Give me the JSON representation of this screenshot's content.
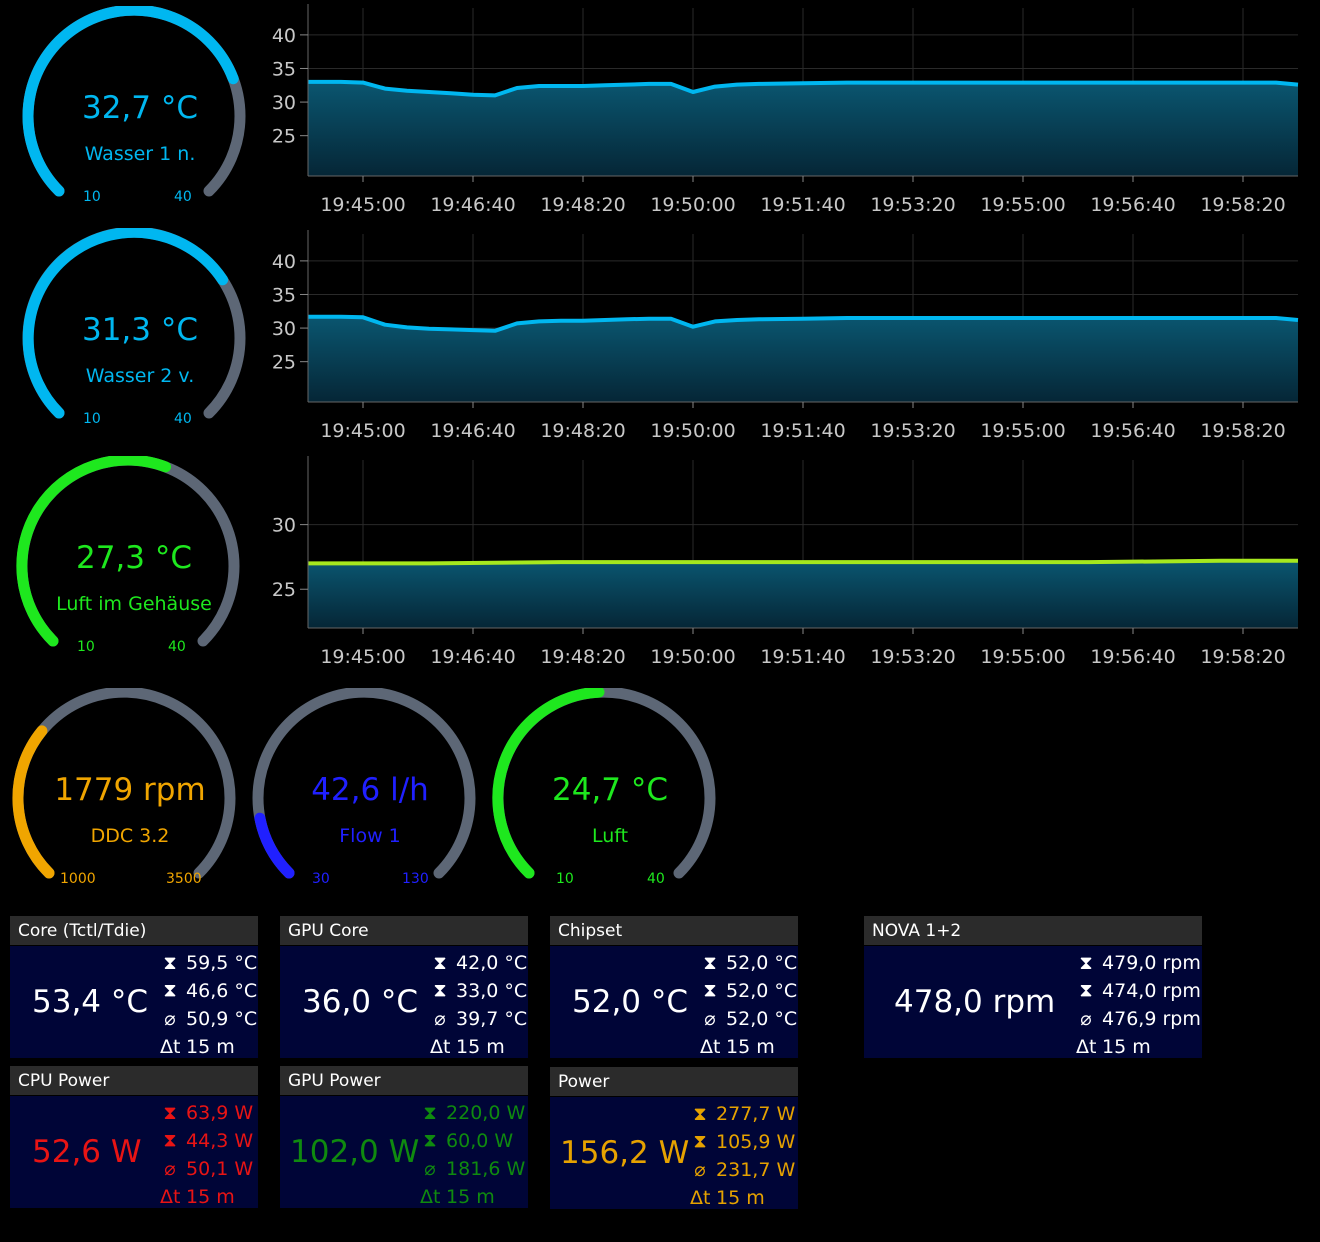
{
  "gauges": [
    {
      "value": "32,7 °C",
      "label": "Wasser 1 n.",
      "min": "10",
      "max": "40",
      "fraction": 0.757,
      "color": "#00b7f0"
    },
    {
      "value": "31,3 °C",
      "label": "Wasser 2 v.",
      "min": "10",
      "max": "40",
      "fraction": 0.71,
      "color": "#00b7f0"
    },
    {
      "value": "27,3 °C",
      "label": "Luft im Gehäuse",
      "min": "10",
      "max": "40",
      "fraction": 0.577,
      "color": "#1ee81e"
    },
    {
      "value": "1779 rpm",
      "label": "DDC 3.2",
      "min": "1000",
      "max": "3500",
      "fraction": 0.312,
      "color": "#f0a500"
    },
    {
      "value": "42,6 l/h",
      "label": "Flow 1",
      "min": "30",
      "max": "130",
      "fraction": 0.126,
      "color": "#2020ff"
    },
    {
      "value": "24,7 °C",
      "label": "Luft",
      "min": "10",
      "max": "40",
      "fraction": 0.49,
      "color": "#1ee81e"
    }
  ],
  "chart_data": [
    {
      "type": "area",
      "x": [
        "19:44:10",
        "19:44:40",
        "19:45:00",
        "19:45:20",
        "19:45:40",
        "19:46:00",
        "19:46:20",
        "19:46:40",
        "19:47:00",
        "19:47:20",
        "19:47:40",
        "19:48:00",
        "19:48:20",
        "19:48:40",
        "19:49:00",
        "19:49:20",
        "19:49:40",
        "19:50:00",
        "19:50:20",
        "19:50:40",
        "19:51:00",
        "19:51:40",
        "19:52:20",
        "19:53:20",
        "19:54:20",
        "19:55:20",
        "19:56:20",
        "19:57:20",
        "19:58:20",
        "19:58:50",
        "19:59:10"
      ],
      "series": [
        {
          "values": [
            33.0,
            33.0,
            32.9,
            32.0,
            31.7,
            31.5,
            31.3,
            31.1,
            31.0,
            32.1,
            32.4,
            32.4,
            32.4,
            32.5,
            32.6,
            32.7,
            32.7,
            31.5,
            32.3,
            32.6,
            32.7,
            32.8,
            32.9,
            32.9,
            32.9,
            32.9,
            32.9,
            32.9,
            32.9,
            32.9,
            32.6
          ]
        }
      ],
      "yticks": [
        "25",
        "30",
        "35",
        "40"
      ],
      "ylim": [
        19,
        44
      ],
      "xticks": [
        "19:45:00",
        "19:46:40",
        "19:48:20",
        "19:50:00",
        "19:51:40",
        "19:53:20",
        "19:55:00",
        "19:56:40",
        "19:58:20"
      ],
      "grid": true,
      "line_color": "#00b7f0"
    },
    {
      "type": "area",
      "x": [
        "19:44:10",
        "19:44:40",
        "19:45:00",
        "19:45:20",
        "19:45:40",
        "19:46:00",
        "19:46:20",
        "19:46:40",
        "19:47:00",
        "19:47:20",
        "19:47:40",
        "19:48:00",
        "19:48:20",
        "19:48:40",
        "19:49:00",
        "19:49:20",
        "19:49:40",
        "19:50:00",
        "19:50:20",
        "19:50:40",
        "19:51:00",
        "19:51:40",
        "19:52:20",
        "19:53:20",
        "19:54:20",
        "19:55:20",
        "19:56:20",
        "19:57:20",
        "19:58:20",
        "19:58:50",
        "19:59:10"
      ],
      "series": [
        {
          "values": [
            31.7,
            31.7,
            31.6,
            30.5,
            30.1,
            29.9,
            29.8,
            29.7,
            29.6,
            30.7,
            31.0,
            31.1,
            31.1,
            31.2,
            31.3,
            31.4,
            31.4,
            30.2,
            31.0,
            31.2,
            31.3,
            31.4,
            31.5,
            31.5,
            31.5,
            31.5,
            31.5,
            31.5,
            31.5,
            31.5,
            31.2
          ]
        }
      ],
      "yticks": [
        "25",
        "30",
        "35",
        "40"
      ],
      "ylim": [
        19,
        44
      ],
      "xticks": [
        "19:45:00",
        "19:46:40",
        "19:48:20",
        "19:50:00",
        "19:51:40",
        "19:53:20",
        "19:55:00",
        "19:56:40",
        "19:58:20"
      ],
      "grid": true,
      "line_color": "#00b7f0"
    },
    {
      "type": "area",
      "x": [
        "19:44:10",
        "19:46:00",
        "19:48:00",
        "19:50:00",
        "19:52:00",
        "19:54:00",
        "19:56:00",
        "19:58:00",
        "19:59:10"
      ],
      "series": [
        {
          "values": [
            27.0,
            27.0,
            27.1,
            27.1,
            27.1,
            27.1,
            27.1,
            27.2,
            27.2
          ]
        }
      ],
      "yticks": [
        "25",
        "30"
      ],
      "ylim": [
        22,
        35
      ],
      "xticks": [
        "19:45:00",
        "19:46:40",
        "19:48:20",
        "19:50:00",
        "19:51:40",
        "19:53:20",
        "19:55:00",
        "19:56:40",
        "19:58:20"
      ],
      "grid": true,
      "line_color": "#a6e81e"
    }
  ],
  "cards": [
    {
      "title": "Core (Tctl/Tdie)",
      "value": "53,4 °C",
      "max": "59,5 °C",
      "min": "46,6 °C",
      "avg": "50,9 °C",
      "dt": "15 m",
      "color": "#ffffff"
    },
    {
      "title": "GPU Core",
      "value": "36,0 °C",
      "max": "42,0 °C",
      "min": "33,0 °C",
      "avg": "39,7 °C",
      "dt": "15 m",
      "color": "#ffffff"
    },
    {
      "title": "Chipset",
      "value": "52,0 °C",
      "max": "52,0 °C",
      "min": "52,0 °C",
      "avg": "52,0 °C",
      "dt": "15 m",
      "color": "#ffffff"
    },
    {
      "title": "NOVA 1+2",
      "value": "478,0 rpm",
      "max": "479,0 rpm",
      "min": "474,0 rpm",
      "avg": "476,9 rpm",
      "dt": "15 m",
      "color": "#ffffff"
    },
    {
      "title": "CPU Power",
      "value": "52,6 W",
      "max": "63,9 W",
      "min": "44,3 W",
      "avg": "50,1 W",
      "dt": "15 m",
      "color": "#e81414"
    },
    {
      "title": "GPU Power",
      "value": "102,0 W",
      "max": "220,0 W",
      "min": "60,0 W",
      "avg": "181,6 W",
      "dt": "15 m",
      "color": "#0f8a0f"
    },
    {
      "title": "Power",
      "value": "156,2 W",
      "max": "277,7 W",
      "min": "105,9 W",
      "avg": "231,7 W",
      "dt": "15 m",
      "color": "#e6a200"
    }
  ],
  "symbols": {
    "max": "⧗",
    "min": "⧗",
    "avg": "⌀",
    "dt": "Δt"
  },
  "icons": {
    "max": "peak-max-icon",
    "min": "peak-min-icon",
    "avg": "average-icon",
    "dt": "delta-time-icon"
  }
}
